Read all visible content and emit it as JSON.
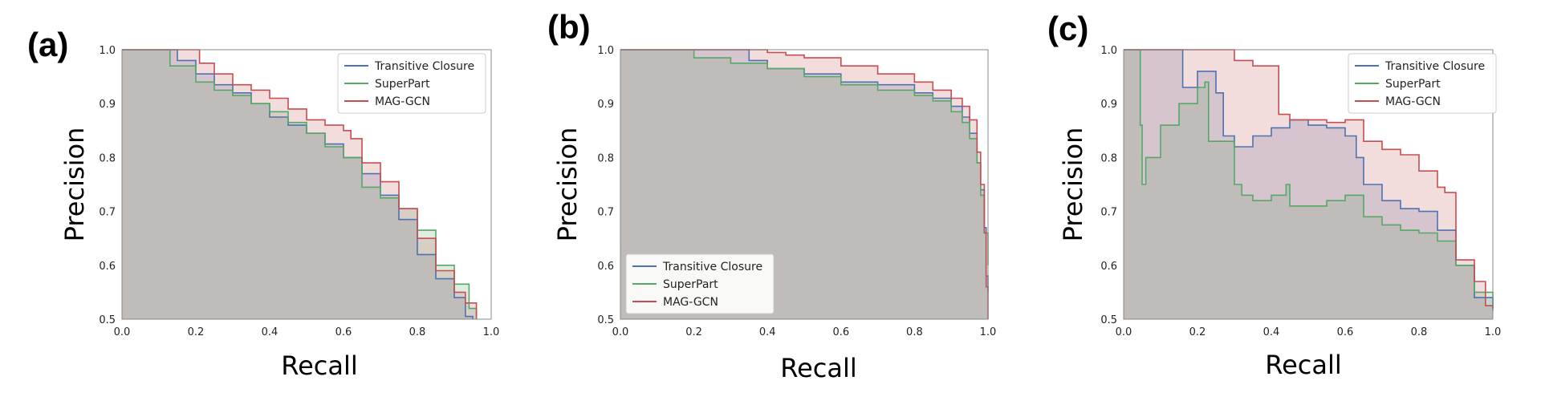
{
  "figure": {
    "colors": {
      "Transitive Closure": "#4C72B0",
      "SuperPart": "#55A868",
      "MAG-GCN": "#C44E52",
      "fill_blend": "#d4c4d1",
      "frame": "#888888"
    }
  },
  "chart_data": [
    {
      "type": "line",
      "panel_label": "(a)",
      "xlabel": "Recall",
      "ylabel": "Precision",
      "xlim": [
        0.0,
        1.0
      ],
      "ylim": [
        0.5,
        1.0
      ],
      "xticks": [
        "0.0",
        "0.2",
        "0.4",
        "0.6",
        "0.8",
        "1.0"
      ],
      "yticks": [
        "0.5",
        "0.6",
        "0.7",
        "0.8",
        "0.9",
        "1.0"
      ],
      "grid": false,
      "legend_position": "top-right",
      "series": [
        {
          "name": "Transitive Closure",
          "x": [
            0.0,
            0.13,
            0.15,
            0.2,
            0.25,
            0.3,
            0.35,
            0.4,
            0.45,
            0.5,
            0.55,
            0.6,
            0.65,
            0.7,
            0.75,
            0.8,
            0.85,
            0.9,
            0.93,
            0.95
          ],
          "y": [
            1.0,
            1.0,
            0.98,
            0.955,
            0.935,
            0.92,
            0.9,
            0.875,
            0.86,
            0.845,
            0.825,
            0.8,
            0.77,
            0.73,
            0.685,
            0.62,
            0.575,
            0.54,
            0.505,
            0.5
          ]
        },
        {
          "name": "SuperPart",
          "x": [
            0.0,
            0.12,
            0.13,
            0.2,
            0.25,
            0.3,
            0.35,
            0.4,
            0.45,
            0.5,
            0.55,
            0.6,
            0.65,
            0.7,
            0.75,
            0.8,
            0.85,
            0.9,
            0.94,
            0.96
          ],
          "y": [
            1.0,
            1.0,
            0.97,
            0.94,
            0.925,
            0.915,
            0.9,
            0.885,
            0.865,
            0.845,
            0.82,
            0.8,
            0.745,
            0.725,
            0.705,
            0.665,
            0.6,
            0.565,
            0.52,
            0.505
          ]
        },
        {
          "name": "MAG-GCN",
          "x": [
            0.0,
            0.2,
            0.21,
            0.25,
            0.3,
            0.35,
            0.4,
            0.45,
            0.5,
            0.55,
            0.6,
            0.62,
            0.65,
            0.7,
            0.75,
            0.8,
            0.85,
            0.9,
            0.93,
            0.96
          ],
          "y": [
            1.0,
            1.0,
            0.975,
            0.955,
            0.935,
            0.925,
            0.91,
            0.89,
            0.87,
            0.86,
            0.85,
            0.835,
            0.79,
            0.755,
            0.705,
            0.65,
            0.59,
            0.55,
            0.53,
            0.5
          ]
        }
      ]
    },
    {
      "type": "line",
      "panel_label": "(b)",
      "xlabel": "Recall",
      "ylabel": "Precision",
      "xlim": [
        0.0,
        1.0
      ],
      "ylim": [
        0.5,
        1.0
      ],
      "xticks": [
        "0.0",
        "0.2",
        "0.4",
        "0.6",
        "0.8",
        "1.0"
      ],
      "yticks": [
        "0.5",
        "0.6",
        "0.7",
        "0.8",
        "0.9",
        "1.0"
      ],
      "grid": false,
      "legend_position": "bottom-left",
      "series": [
        {
          "name": "Transitive Closure",
          "x": [
            0.0,
            0.3,
            0.35,
            0.4,
            0.5,
            0.6,
            0.7,
            0.8,
            0.85,
            0.9,
            0.93,
            0.95,
            0.97,
            0.98,
            0.99,
            0.995,
            1.0
          ],
          "y": [
            1.0,
            1.0,
            0.98,
            0.965,
            0.955,
            0.94,
            0.935,
            0.92,
            0.91,
            0.895,
            0.875,
            0.845,
            0.79,
            0.74,
            0.67,
            0.58,
            0.55
          ]
        },
        {
          "name": "SuperPart",
          "x": [
            0.0,
            0.18,
            0.2,
            0.3,
            0.4,
            0.5,
            0.6,
            0.7,
            0.8,
            0.85,
            0.9,
            0.93,
            0.95,
            0.97,
            0.98,
            0.99,
            1.0
          ],
          "y": [
            1.0,
            1.0,
            0.985,
            0.975,
            0.965,
            0.95,
            0.935,
            0.925,
            0.915,
            0.905,
            0.885,
            0.865,
            0.835,
            0.79,
            0.73,
            0.66,
            0.6
          ]
        },
        {
          "name": "MAG-GCN",
          "x": [
            0.0,
            0.38,
            0.4,
            0.45,
            0.5,
            0.6,
            0.7,
            0.8,
            0.85,
            0.9,
            0.93,
            0.95,
            0.97,
            0.98,
            0.99,
            0.995,
            1.0
          ],
          "y": [
            1.0,
            1.0,
            0.995,
            0.99,
            0.985,
            0.97,
            0.955,
            0.94,
            0.925,
            0.91,
            0.895,
            0.87,
            0.81,
            0.75,
            0.66,
            0.56,
            0.5
          ]
        }
      ]
    },
    {
      "type": "line",
      "panel_label": "(c)",
      "xlabel": "Recall",
      "ylabel": "Precision",
      "xlim": [
        0.0,
        1.0
      ],
      "ylim": [
        0.5,
        1.0
      ],
      "xticks": [
        "0.0",
        "0.2",
        "0.4",
        "0.6",
        "0.8",
        "1.0"
      ],
      "yticks": [
        "0.5",
        "0.6",
        "0.7",
        "0.8",
        "0.9",
        "1.0"
      ],
      "grid": false,
      "legend_position": "top-right",
      "series": [
        {
          "name": "Transitive Closure",
          "x": [
            0.0,
            0.15,
            0.16,
            0.2,
            0.25,
            0.27,
            0.3,
            0.35,
            0.4,
            0.45,
            0.5,
            0.55,
            0.6,
            0.63,
            0.65,
            0.7,
            0.75,
            0.8,
            0.85,
            0.9,
            0.95,
            1.0
          ],
          "y": [
            1.0,
            1.0,
            0.93,
            0.96,
            0.92,
            0.84,
            0.82,
            0.84,
            0.855,
            0.87,
            0.86,
            0.855,
            0.84,
            0.8,
            0.75,
            0.72,
            0.705,
            0.7,
            0.665,
            0.6,
            0.54,
            0.52
          ]
        },
        {
          "name": "SuperPart",
          "x": [
            0.0,
            0.04,
            0.045,
            0.05,
            0.06,
            0.1,
            0.15,
            0.2,
            0.22,
            0.23,
            0.3,
            0.32,
            0.35,
            0.4,
            0.44,
            0.45,
            0.5,
            0.55,
            0.6,
            0.65,
            0.7,
            0.75,
            0.8,
            0.85,
            0.9,
            0.95,
            1.0
          ],
          "y": [
            1.0,
            1.0,
            0.86,
            0.75,
            0.8,
            0.86,
            0.9,
            0.93,
            0.94,
            0.83,
            0.75,
            0.73,
            0.72,
            0.73,
            0.75,
            0.71,
            0.71,
            0.72,
            0.73,
            0.69,
            0.675,
            0.665,
            0.66,
            0.645,
            0.6,
            0.55,
            0.515
          ]
        },
        {
          "name": "MAG-GCN",
          "x": [
            0.0,
            0.29,
            0.3,
            0.35,
            0.4,
            0.42,
            0.45,
            0.5,
            0.55,
            0.6,
            0.65,
            0.7,
            0.75,
            0.8,
            0.85,
            0.87,
            0.9,
            0.95,
            0.98,
            1.0
          ],
          "y": [
            1.0,
            1.0,
            0.98,
            0.97,
            0.97,
            0.88,
            0.87,
            0.87,
            0.865,
            0.87,
            0.83,
            0.815,
            0.805,
            0.775,
            0.745,
            0.735,
            0.61,
            0.57,
            0.525,
            0.52
          ]
        }
      ]
    }
  ]
}
